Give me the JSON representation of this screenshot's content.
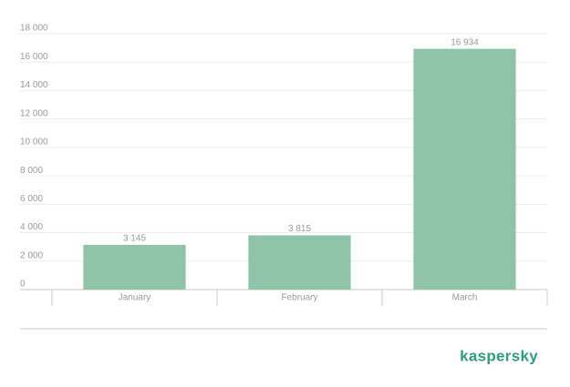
{
  "chart_data": {
    "type": "bar",
    "categories": [
      "January",
      "February",
      "March"
    ],
    "values": [
      3145,
      3815,
      16934
    ],
    "value_labels": [
      "3 145",
      "3 815",
      "16 934"
    ],
    "color": "#8fc4a8",
    "ylim": [
      0,
      18000
    ],
    "yticks": [
      0,
      {
        "value": 2000,
        "label": "2 000"
      },
      {
        "value": 4000,
        "label": "4 000"
      },
      {
        "value": 6000,
        "label": "6 000"
      },
      {
        "value": 8000,
        "label": "8 000"
      },
      {
        "value": 10000,
        "label": "10 000"
      },
      {
        "value": 12000,
        "label": "12 000"
      },
      {
        "value": 14000,
        "label": "14 000"
      },
      {
        "value": 16000,
        "label": "16 000"
      },
      {
        "value": 18000,
        "label": "18 000"
      }
    ],
    "grid": true
  },
  "logo": "kaspersky"
}
